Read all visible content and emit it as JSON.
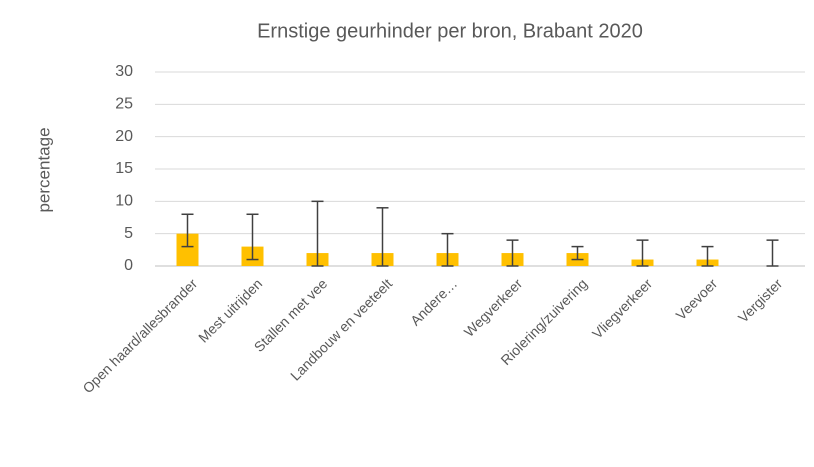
{
  "chart_data": {
    "type": "bar",
    "title": "Ernstige geurhinder per bron, Brabant 2020",
    "y_label": "percentage",
    "categories": [
      "Open haard/allesbrander",
      "Mest uitrijden",
      "Stallen met vee",
      "Landbouw en veeteelt",
      "Andere…",
      "Wegverkeer",
      "Riolering/zuivering",
      "Vliegverkeer",
      "Veevoer",
      "Vergister"
    ],
    "values": [
      5,
      3,
      2,
      2,
      2,
      2,
      2,
      1,
      1,
      0
    ],
    "lower": [
      3,
      1,
      0,
      0,
      0,
      0,
      1,
      0,
      0,
      0
    ],
    "upper": [
      8,
      8,
      10,
      9,
      5,
      4,
      3,
      4,
      3,
      4
    ],
    "color": "#ffc000",
    "error_color": "#404040",
    "ylim": [
      0,
      30
    ],
    "yticks": [
      0,
      5,
      10,
      15,
      20,
      25,
      30
    ],
    "grid": true
  }
}
